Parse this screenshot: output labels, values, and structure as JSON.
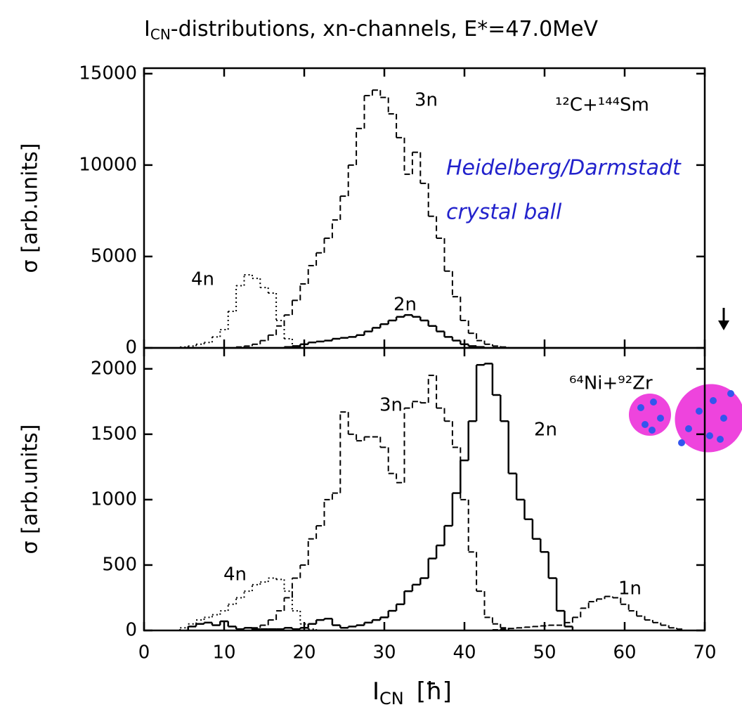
{
  "title": {
    "main": "I",
    "sub": "CN",
    "rest": "-distributions, xn-channels, E*=47.0MeV"
  },
  "note": [
    "Heidelberg/Darmstadt",
    "crystal ball"
  ],
  "chart_data": [
    {
      "type": "step",
      "annotation": "¹²C+¹⁴⁴Sm",
      "ylabel": "σ  [arb.units]",
      "x": [
        5,
        6,
        7,
        8,
        9,
        10,
        11,
        12,
        13,
        14,
        15,
        16,
        17,
        18,
        19,
        20,
        21,
        22,
        23,
        24,
        25,
        26,
        27,
        28,
        29,
        30,
        31,
        32,
        33,
        34,
        35,
        36,
        37,
        38,
        39,
        40,
        41,
        42,
        43,
        44,
        45,
        46,
        47
      ],
      "xlim": [
        0,
        70
      ],
      "ylim": [
        0,
        15300
      ],
      "yticks": [
        0,
        5000,
        10000,
        15000
      ],
      "series": [
        {
          "name": "4n",
          "color": "#000",
          "style": "dotted",
          "values": [
            50,
            100,
            200,
            300,
            600,
            1000,
            2000,
            3400,
            4000,
            3800,
            3300,
            3000,
            1500,
            500,
            100,
            null,
            null,
            null,
            null,
            null,
            null,
            null,
            null,
            null,
            null,
            null,
            null,
            null,
            null,
            null,
            null,
            null,
            null,
            null,
            null,
            null,
            null,
            null,
            null,
            null,
            null,
            null,
            null
          ]
        },
        {
          "name": "3n",
          "color": "#000",
          "style": "dashed",
          "values": [
            null,
            null,
            null,
            null,
            null,
            null,
            null,
            50,
            100,
            200,
            400,
            700,
            1200,
            1800,
            2600,
            3500,
            4500,
            5200,
            6000,
            7000,
            8300,
            10000,
            12000,
            13800,
            14100,
            13700,
            12800,
            11500,
            9500,
            10700,
            9000,
            7200,
            6000,
            4200,
            2800,
            1500,
            800,
            400,
            200,
            100,
            50,
            null,
            null
          ]
        },
        {
          "name": "2n",
          "color": "#000",
          "style": "solid",
          "values": [
            null,
            null,
            null,
            null,
            null,
            null,
            null,
            null,
            null,
            null,
            null,
            null,
            null,
            50,
            100,
            200,
            300,
            350,
            400,
            500,
            550,
            600,
            700,
            900,
            1100,
            1300,
            1500,
            1700,
            1800,
            1700,
            1500,
            1200,
            900,
            600,
            400,
            200,
            100,
            50,
            null,
            null,
            null,
            null,
            null
          ]
        }
      ]
    },
    {
      "type": "step",
      "annotation": "⁶⁴Ni+⁹²Zr",
      "ylabel": "σ  [arb.units]",
      "xlabel": {
        "main": "I",
        "sub": "CN",
        "rest": "[ħ]"
      },
      "x": [
        5,
        6,
        7,
        8,
        9,
        10,
        11,
        12,
        13,
        14,
        15,
        16,
        17,
        18,
        19,
        20,
        21,
        22,
        23,
        24,
        25,
        26,
        27,
        28,
        29,
        30,
        31,
        32,
        33,
        34,
        35,
        36,
        37,
        38,
        39,
        40,
        41,
        42,
        43,
        44,
        45,
        46,
        47,
        48,
        49,
        50,
        51,
        52,
        53,
        54,
        55,
        56,
        57,
        58,
        59,
        60,
        61,
        62,
        63,
        64,
        65,
        66,
        67
      ],
      "xlim": [
        0,
        70
      ],
      "ylim": [
        0,
        2160
      ],
      "xticks": [
        0,
        10,
        20,
        30,
        40,
        50,
        60,
        70
      ],
      "yticks": [
        0,
        500,
        1000,
        1500,
        2000
      ],
      "series": [
        {
          "name": "4n",
          "color": "#000",
          "style": "dotted",
          "values": [
            20,
            50,
            80,
            100,
            120,
            150,
            200,
            250,
            300,
            350,
            370,
            400,
            390,
            300,
            150,
            50,
            10,
            null,
            null,
            null,
            null,
            null,
            null,
            null,
            null,
            null,
            null,
            null,
            null,
            null,
            null,
            null,
            null,
            null,
            null,
            null,
            null,
            null,
            null,
            null,
            null,
            null,
            null,
            null,
            null,
            null,
            null,
            null,
            null,
            null,
            null,
            null,
            null,
            null,
            null,
            null,
            null,
            null,
            null,
            null,
            null,
            null,
            null
          ]
        },
        {
          "name": "3n",
          "color": "#000",
          "style": "dashed",
          "values": [
            null,
            null,
            null,
            null,
            null,
            null,
            null,
            null,
            null,
            20,
            40,
            80,
            150,
            250,
            400,
            500,
            700,
            800,
            1000,
            1050,
            1670,
            1500,
            1450,
            1480,
            1480,
            1400,
            1200,
            1130,
            1700,
            1750,
            1740,
            1950,
            1700,
            1600,
            1400,
            1000,
            600,
            300,
            100,
            50,
            20,
            null,
            null,
            null,
            null,
            null,
            null,
            null,
            null,
            null,
            null,
            null,
            null,
            null,
            null,
            null,
            null,
            null,
            null,
            null,
            null,
            null,
            null
          ]
        },
        {
          "name": "2n",
          "color": "#000",
          "style": "solid",
          "values": [
            null,
            30,
            50,
            60,
            40,
            70,
            30,
            10,
            20,
            10,
            10,
            10,
            10,
            20,
            10,
            20,
            50,
            80,
            90,
            40,
            20,
            30,
            40,
            60,
            80,
            100,
            150,
            200,
            300,
            350,
            400,
            550,
            650,
            800,
            1050,
            1300,
            1600,
            2030,
            2040,
            1800,
            1600,
            1200,
            1000,
            850,
            700,
            600,
            400,
            150,
            30,
            null,
            null,
            null,
            null,
            null,
            null,
            null,
            null,
            null,
            null,
            null,
            null,
            null,
            null
          ]
        },
        {
          "name": "1n",
          "color": "#000",
          "style": "dashdot",
          "values": [
            null,
            null,
            null,
            null,
            null,
            null,
            null,
            null,
            null,
            null,
            null,
            null,
            null,
            null,
            null,
            null,
            null,
            null,
            null,
            null,
            null,
            null,
            null,
            null,
            null,
            null,
            null,
            null,
            null,
            null,
            null,
            null,
            null,
            null,
            null,
            null,
            null,
            null,
            null,
            5,
            10,
            15,
            20,
            25,
            30,
            35,
            40,
            40,
            60,
            100,
            170,
            220,
            240,
            260,
            250,
            200,
            150,
            110,
            80,
            60,
            40,
            20,
            10
          ]
        }
      ]
    }
  ]
}
